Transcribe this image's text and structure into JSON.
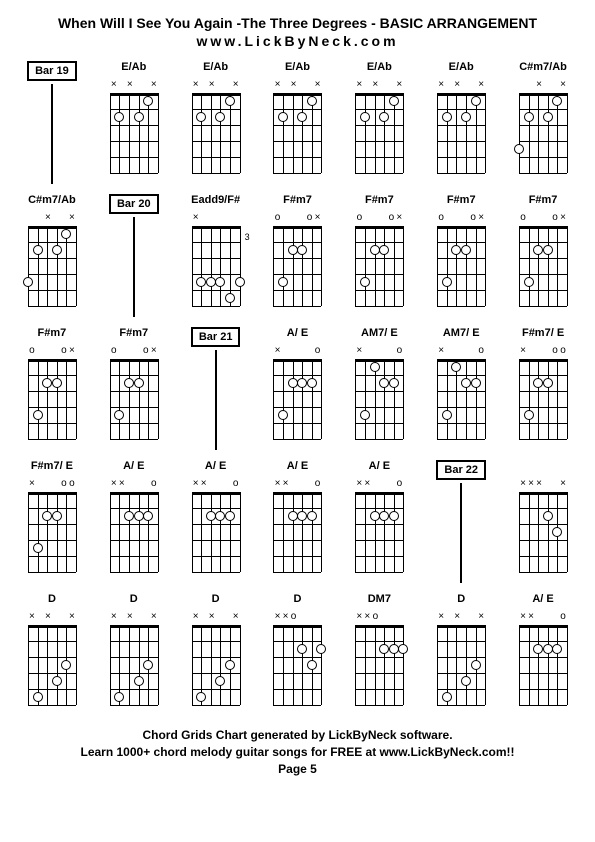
{
  "title": "When Will I See You Again -The Three Degrees  - BASIC ARRANGEMENT",
  "subtitle": "www.LickByNeck.com",
  "footer_line1": "Chord Grids Chart generated by LickByNeck software.",
  "footer_line2": "Learn 1000+ chord melody guitar songs for FREE at www.LickByNeck.com!!",
  "footer_line3": "Page 5",
  "cells": [
    {
      "type": "bar",
      "label": "Bar 19"
    },
    {
      "type": "chord",
      "label": "E/Ab",
      "markers": [
        "x",
        "",
        "x",
        "",
        "",
        "x"
      ],
      "dots": [
        [
          2,
          2
        ],
        [
          4,
          2
        ],
        [
          5,
          1
        ]
      ],
      "fretNum": ""
    },
    {
      "type": "chord",
      "label": "E/Ab",
      "markers": [
        "x",
        "",
        "x",
        "",
        "",
        "x"
      ],
      "dots": [
        [
          2,
          2
        ],
        [
          4,
          2
        ],
        [
          5,
          1
        ]
      ],
      "fretNum": ""
    },
    {
      "type": "chord",
      "label": "E/Ab",
      "markers": [
        "x",
        "",
        "x",
        "",
        "",
        "x"
      ],
      "dots": [
        [
          2,
          2
        ],
        [
          4,
          2
        ],
        [
          5,
          1
        ]
      ],
      "fretNum": ""
    },
    {
      "type": "chord",
      "label": "E/Ab",
      "markers": [
        "x",
        "",
        "x",
        "",
        "",
        "x"
      ],
      "dots": [
        [
          2,
          2
        ],
        [
          4,
          2
        ],
        [
          5,
          1
        ]
      ],
      "fretNum": ""
    },
    {
      "type": "chord",
      "label": "E/Ab",
      "markers": [
        "x",
        "",
        "x",
        "",
        "",
        "x"
      ],
      "dots": [
        [
          2,
          2
        ],
        [
          4,
          2
        ],
        [
          5,
          1
        ]
      ],
      "fretNum": ""
    },
    {
      "type": "chord",
      "label": "C#m7/Ab",
      "markers": [
        "",
        "",
        "x",
        "",
        "",
        "x"
      ],
      "dots": [
        [
          1,
          4
        ],
        [
          2,
          2
        ],
        [
          4,
          2
        ],
        [
          5,
          1
        ]
      ],
      "fretNum": ""
    },
    {
      "type": "chord",
      "label": "C#m7/Ab",
      "markers": [
        "",
        "",
        "x",
        "",
        "",
        "x"
      ],
      "dots": [
        [
          1,
          4
        ],
        [
          2,
          2
        ],
        [
          4,
          2
        ],
        [
          5,
          1
        ]
      ],
      "fretNum": ""
    },
    {
      "type": "bar",
      "label": "Bar 20"
    },
    {
      "type": "chord",
      "label": "Eadd9/F#",
      "markers": [
        "x",
        "",
        "",
        "",
        "",
        ""
      ],
      "dots": [
        [
          2,
          4
        ],
        [
          3,
          4
        ],
        [
          4,
          4
        ],
        [
          5,
          5
        ],
        [
          6,
          4
        ]
      ],
      "fretNum": "3"
    },
    {
      "type": "chord",
      "label": "F#m7",
      "markers": [
        "o",
        "",
        "",
        "",
        "o",
        "x"
      ],
      "dots": [
        [
          2,
          4
        ],
        [
          3,
          2
        ],
        [
          4,
          2
        ]
      ],
      "fretNum": ""
    },
    {
      "type": "chord",
      "label": "F#m7",
      "markers": [
        "o",
        "",
        "",
        "",
        "o",
        "x"
      ],
      "dots": [
        [
          2,
          4
        ],
        [
          3,
          2
        ],
        [
          4,
          2
        ]
      ],
      "fretNum": ""
    },
    {
      "type": "chord",
      "label": "F#m7",
      "markers": [
        "o",
        "",
        "",
        "",
        "o",
        "x"
      ],
      "dots": [
        [
          2,
          4
        ],
        [
          3,
          2
        ],
        [
          4,
          2
        ]
      ],
      "fretNum": ""
    },
    {
      "type": "chord",
      "label": "F#m7",
      "markers": [
        "o",
        "",
        "",
        "",
        "o",
        "x"
      ],
      "dots": [
        [
          2,
          4
        ],
        [
          3,
          2
        ],
        [
          4,
          2
        ]
      ],
      "fretNum": ""
    },
    {
      "type": "chord",
      "label": "F#m7",
      "markers": [
        "o",
        "",
        "",
        "",
        "o",
        "x"
      ],
      "dots": [
        [
          2,
          4
        ],
        [
          3,
          2
        ],
        [
          4,
          2
        ]
      ],
      "fretNum": ""
    },
    {
      "type": "chord",
      "label": "F#m7",
      "markers": [
        "o",
        "",
        "",
        "",
        "o",
        "x"
      ],
      "dots": [
        [
          2,
          4
        ],
        [
          3,
          2
        ],
        [
          4,
          2
        ]
      ],
      "fretNum": ""
    },
    {
      "type": "bar",
      "label": "Bar 21"
    },
    {
      "type": "chord",
      "label": "A/ E",
      "markers": [
        "x",
        "",
        "",
        "",
        "",
        "o"
      ],
      "dots": [
        [
          2,
          4
        ],
        [
          3,
          2
        ],
        [
          4,
          2
        ],
        [
          5,
          2
        ]
      ],
      "fretNum": ""
    },
    {
      "type": "chord",
      "label": "AM7/ E",
      "markers": [
        "x",
        "",
        "",
        "",
        "",
        "o"
      ],
      "dots": [
        [
          2,
          4
        ],
        [
          3,
          1
        ],
        [
          4,
          2
        ],
        [
          5,
          2
        ]
      ],
      "fretNum": ""
    },
    {
      "type": "chord",
      "label": "AM7/ E",
      "markers": [
        "x",
        "",
        "",
        "",
        "",
        "o"
      ],
      "dots": [
        [
          2,
          4
        ],
        [
          3,
          1
        ],
        [
          4,
          2
        ],
        [
          5,
          2
        ]
      ],
      "fretNum": ""
    },
    {
      "type": "chord",
      "label": "F#m7/ E",
      "markers": [
        "x",
        "",
        "",
        "",
        "o",
        "o"
      ],
      "dots": [
        [
          2,
          4
        ],
        [
          3,
          2
        ],
        [
          4,
          2
        ]
      ],
      "fretNum": ""
    },
    {
      "type": "chord",
      "label": "F#m7/ E",
      "markers": [
        "x",
        "",
        "",
        "",
        "o",
        "o"
      ],
      "dots": [
        [
          2,
          4
        ],
        [
          3,
          2
        ],
        [
          4,
          2
        ]
      ],
      "fretNum": ""
    },
    {
      "type": "chord",
      "label": "A/ E",
      "markers": [
        "x",
        "x",
        "",
        "",
        "",
        "o"
      ],
      "dots": [
        [
          3,
          2
        ],
        [
          4,
          2
        ],
        [
          5,
          2
        ]
      ],
      "fretNum": ""
    },
    {
      "type": "chord",
      "label": "A/ E",
      "markers": [
        "x",
        "x",
        "",
        "",
        "",
        "o"
      ],
      "dots": [
        [
          3,
          2
        ],
        [
          4,
          2
        ],
        [
          5,
          2
        ]
      ],
      "fretNum": ""
    },
    {
      "type": "chord",
      "label": "A/ E",
      "markers": [
        "x",
        "x",
        "",
        "",
        "",
        "o"
      ],
      "dots": [
        [
          3,
          2
        ],
        [
          4,
          2
        ],
        [
          5,
          2
        ]
      ],
      "fretNum": ""
    },
    {
      "type": "chord",
      "label": "A/ E",
      "markers": [
        "x",
        "x",
        "",
        "",
        "",
        "o"
      ],
      "dots": [
        [
          3,
          2
        ],
        [
          4,
          2
        ],
        [
          5,
          2
        ]
      ],
      "fretNum": ""
    },
    {
      "type": "bar",
      "label": "Bar 22"
    },
    {
      "type": "chord",
      "label": "",
      "markers": [
        "x",
        "x",
        "x",
        "",
        "",
        "x"
      ],
      "dots": [
        [
          4,
          2
        ],
        [
          5,
          3
        ]
      ],
      "fretNum": ""
    },
    {
      "type": "chord",
      "label": "D",
      "markers": [
        "x",
        "",
        "x",
        "",
        "",
        "x"
      ],
      "dots": [
        [
          2,
          5
        ],
        [
          4,
          4
        ],
        [
          5,
          3
        ]
      ],
      "fretNum": ""
    },
    {
      "type": "chord",
      "label": "D",
      "markers": [
        "x",
        "",
        "x",
        "",
        "",
        "x"
      ],
      "dots": [
        [
          2,
          5
        ],
        [
          4,
          4
        ],
        [
          5,
          3
        ]
      ],
      "fretNum": ""
    },
    {
      "type": "chord",
      "label": "D",
      "markers": [
        "x",
        "",
        "x",
        "",
        "",
        "x"
      ],
      "dots": [
        [
          2,
          5
        ],
        [
          4,
          4
        ],
        [
          5,
          3
        ]
      ],
      "fretNum": ""
    },
    {
      "type": "chord",
      "label": "D",
      "markers": [
        "x",
        "x",
        "o",
        "",
        "",
        ""
      ],
      "dots": [
        [
          4,
          2
        ],
        [
          5,
          3
        ],
        [
          6,
          2
        ]
      ],
      "fretNum": ""
    },
    {
      "type": "chord",
      "label": "DM7",
      "markers": [
        "x",
        "x",
        "o",
        "",
        "",
        ""
      ],
      "dots": [
        [
          4,
          2
        ],
        [
          5,
          2
        ],
        [
          6,
          2
        ]
      ],
      "fretNum": ""
    },
    {
      "type": "chord",
      "label": "D",
      "markers": [
        "x",
        "",
        "x",
        "",
        "",
        "x"
      ],
      "dots": [
        [
          2,
          5
        ],
        [
          4,
          4
        ],
        [
          5,
          3
        ]
      ],
      "fretNum": ""
    },
    {
      "type": "chord",
      "label": "A/ E",
      "markers": [
        "x",
        "x",
        "",
        "",
        "",
        "o"
      ],
      "dots": [
        [
          3,
          2
        ],
        [
          4,
          2
        ],
        [
          5,
          2
        ]
      ],
      "fretNum": ""
    }
  ]
}
